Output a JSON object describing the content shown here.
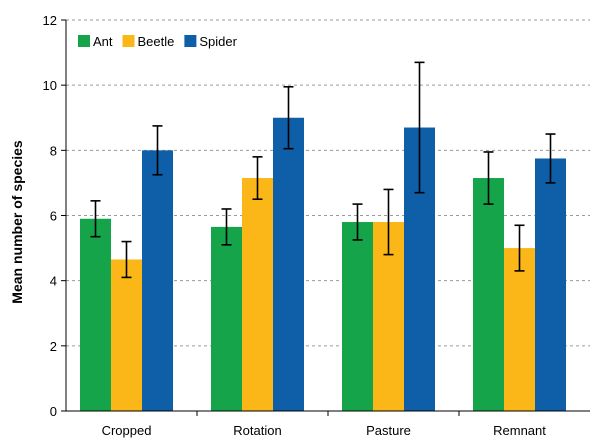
{
  "chart_data": {
    "type": "bar",
    "title": "",
    "xlabel": "",
    "ylabel": "Mean number of species",
    "ylim": [
      0,
      12
    ],
    "yticks": [
      0,
      2,
      4,
      6,
      8,
      10,
      12
    ],
    "grid": true,
    "legend_position": "top-left",
    "categories": [
      "Cropped",
      "Rotation",
      "Pasture",
      "Remnant"
    ],
    "series": [
      {
        "name": "Ant",
        "color": "#16a44a",
        "values": [
          5.9,
          5.65,
          5.8,
          7.15
        ],
        "errors": [
          0.55,
          0.55,
          0.55,
          0.8
        ]
      },
      {
        "name": "Beetle",
        "color": "#fbb718",
        "values": [
          4.65,
          7.15,
          5.8,
          5.0
        ],
        "errors": [
          0.55,
          0.65,
          1.0,
          0.7
        ]
      },
      {
        "name": "Spider",
        "color": "#0f5ea8",
        "values": [
          8.0,
          9.0,
          8.7,
          7.75
        ],
        "errors": [
          0.75,
          0.95,
          2.0,
          0.75
        ]
      }
    ]
  }
}
